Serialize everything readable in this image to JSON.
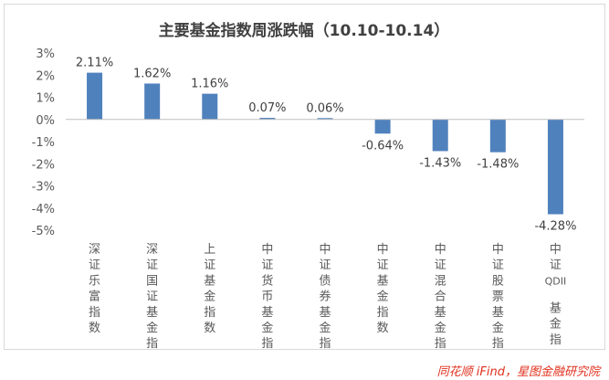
{
  "chart_data": {
    "type": "bar",
    "title": "主要基金指数周涨跌幅（10.10-10.14）",
    "xlabel": "",
    "ylabel": "",
    "ylim": [
      -5,
      3
    ],
    "yticks": [
      "3%",
      "2%",
      "1%",
      "0%",
      "-1%",
      "-2%",
      "-3%",
      "-4%",
      "-5%"
    ],
    "categories": [
      "深证乐富指数",
      "深证国证基金指数",
      "上证基金指数",
      "中证货币基金指数",
      "中证债券基金指数",
      "中证基金指数",
      "中证混合基金指数",
      "中证股票基金指数",
      "中证QDII基金指数"
    ],
    "values": [
      2.11,
      1.62,
      1.16,
      0.07,
      0.06,
      -0.64,
      -1.43,
      -1.48,
      -4.28
    ],
    "data_labels": [
      "2.11%",
      "1.62%",
      "1.16%",
      "0.07%",
      "0.06%",
      "-0.64%",
      "-1.43%",
      "-1.48%",
      "-4.28%"
    ],
    "grid": false,
    "bar_color": "#4f81bd"
  },
  "source_credit": "同花顺 iFind，星图金融研究院"
}
